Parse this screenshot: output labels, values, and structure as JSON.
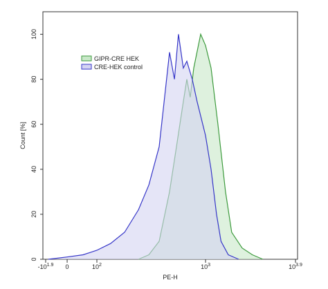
{
  "chart_data": {
    "type": "area",
    "x_label": "PE-H",
    "y_label": "Count [%]",
    "xscale": "biexponential",
    "xlim": [
      -79.4,
      7943
    ],
    "xticks": [
      {
        "value": -79.4,
        "label": "-10^1.9"
      },
      0,
      {
        "value": 100,
        "label": "10^2"
      },
      {
        "value": 1000,
        "label": "10^3"
      },
      {
        "value": 7943,
        "label": "10^3.9"
      }
    ],
    "ylim": [
      0,
      110
    ],
    "yticks": [
      0,
      20,
      40,
      60,
      80,
      100
    ],
    "legend": "upper left",
    "series": [
      {
        "name": "GIPR-CRE HEK",
        "color": "#3c9a3c",
        "fill": "#c8e8c8",
        "x": [
          284,
          352,
          431,
          525,
          597,
          676,
          720,
          765,
          814,
          919,
          1000,
          1142,
          1345,
          1610,
          1860,
          2370,
          3000,
          3810
        ],
        "values": [
          0,
          2,
          8,
          30,
          50,
          70,
          80,
          72,
          85,
          100,
          95,
          85,
          60,
          30,
          12,
          5,
          2,
          0
        ]
      },
      {
        "name": "CRE-HEK control",
        "color": "#3535c8",
        "fill": "#d4d4f2",
        "x": [
          -67,
          0,
          45,
          100,
          148,
          209,
          284,
          352,
          431,
          525,
          575,
          619,
          676,
          720,
          793,
          864,
          1000,
          1142,
          1303,
          1450,
          1720,
          2190
        ],
        "values": [
          0,
          1,
          2,
          4,
          7,
          12,
          22,
          33,
          50,
          92,
          80,
          100,
          85,
          88,
          80,
          70,
          55,
          40,
          20,
          8,
          2,
          0
        ]
      }
    ]
  }
}
